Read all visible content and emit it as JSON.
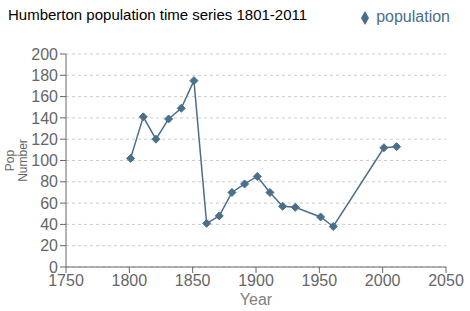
{
  "chart_data": {
    "type": "line",
    "title": "Humberton population time series 1801-2011",
    "x_label": "Year",
    "y_label": "Pop\nNumber",
    "x": [
      1801,
      1811,
      1821,
      1831,
      1841,
      1851,
      1861,
      1871,
      1881,
      1891,
      1901,
      1911,
      1921,
      1931,
      1951,
      1961,
      2001,
      2011
    ],
    "series": [
      {
        "name": "population",
        "color": "#4a6f8a",
        "marker": "diamond",
        "values": [
          102,
          141,
          120,
          139,
          149,
          175,
          41,
          48,
          70,
          78,
          85,
          70,
          57,
          56,
          47,
          38,
          112,
          113
        ]
      }
    ],
    "xlim": [
      1750,
      2050
    ],
    "ylim": [
      0,
      200
    ],
    "xticks": [
      1750,
      1800,
      1850,
      1900,
      1950,
      2000,
      2050
    ],
    "yticks": [
      0,
      20,
      40,
      60,
      80,
      100,
      120,
      140,
      160,
      180,
      200
    ],
    "grid": "y",
    "legend": "top-right"
  }
}
